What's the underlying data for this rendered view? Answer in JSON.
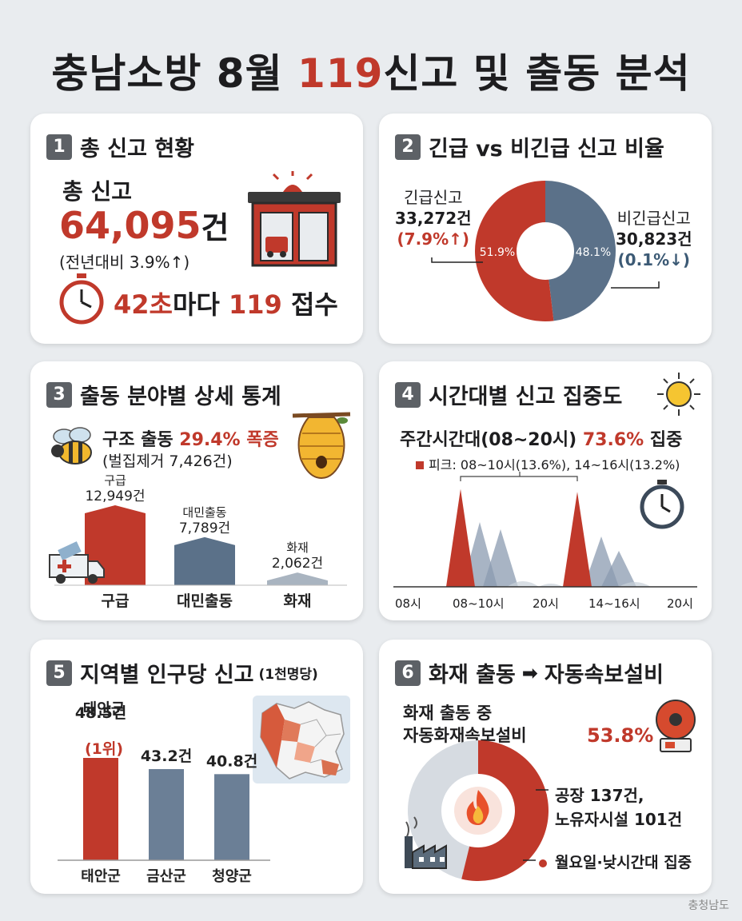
{
  "title": {
    "pre": "충남소방 8월 ",
    "red": "119",
    "post": "신고 및 출동 분석"
  },
  "colors": {
    "red": "#c0392b",
    "blue": "#5b7189",
    "gray": "#a9b4c0"
  },
  "s1": {
    "num": "1",
    "title": "총 신고 현황",
    "label": "총 신고",
    "total": "64,095",
    "unit": "건",
    "yoy": "(전년대비 3.9%↑)",
    "freq_sec": "42초",
    "freq_mid": "마다 ",
    "freq_num": "119",
    "freq_end": " 접수",
    "icons": [
      "fire-station-icon",
      "stopwatch-icon"
    ]
  },
  "s2": {
    "num": "2",
    "title": "긴급 vs 비긴급 신고 비율",
    "emergency": {
      "label": "긴급신고",
      "count": "33,272건",
      "change": "(7.9%↑)",
      "pct": "51.9%"
    },
    "nonemergency": {
      "label": "비긴급신고",
      "count": "30,823건",
      "change": "(0.1%↓)",
      "pct": "48.1%"
    }
  },
  "s3": {
    "num": "3",
    "title": "출동 분야별 상세 통계",
    "rescue_pre": "구조 출동 ",
    "rescue_red": "29.4% 폭증",
    "rescue_sub": "(벌집제거 7,426건)",
    "icons": [
      "bee-icon",
      "beehive-icon",
      "ambulance-icon"
    ]
  },
  "s4": {
    "num": "4",
    "title": "시간대별 신고 집중도",
    "daytime_pre": "주간시간대(08~20시) ",
    "daytime_red": "73.6%",
    "daytime_post": " 집중",
    "peak_note": "피크: 08~10시(13.6%), 14~16시(13.2%)",
    "axis": [
      "08시",
      "08~10시",
      "20시",
      "14~16시",
      "20시"
    ],
    "icons": [
      "sun-icon",
      "stopwatch-icon"
    ]
  },
  "s5": {
    "num": "5",
    "title": "지역별 인구당 신고",
    "title_note": "(1천명당)",
    "top_name": "태안군",
    "top_rank": "(1위)",
    "icons": [
      "map-icon"
    ]
  },
  "s6": {
    "num": "6",
    "title_pre": "화재 출동",
    "title_post": "자동속보설비",
    "desc1": "화재 출동 중",
    "desc2": "자동화재속보설비",
    "pct": "53.8%",
    "bullet1a": "공장 137건,",
    "bullet1b": "노유자시설 101건",
    "bullet2": "월요일·낮시간대 집중",
    "donut_share": 53.8,
    "icons": [
      "alarm-bell-icon",
      "fire-icon",
      "factory-icon"
    ]
  },
  "footer": "충청남도",
  "chart_data": [
    {
      "type": "pie",
      "title": "긴급 vs 비긴급 신고 비율",
      "categories": [
        "긴급신고",
        "비긴급신고"
      ],
      "values": [
        51.9,
        48.1
      ]
    },
    {
      "type": "bar",
      "title": "출동 분야별 상세 통계",
      "categories": [
        "구급",
        "대민출동",
        "화재"
      ],
      "values": [
        12949,
        7789,
        2062
      ],
      "value_labels": [
        "12,949건",
        "7,789건",
        "2,062건"
      ]
    },
    {
      "type": "area",
      "title": "시간대별 신고 집중도",
      "series": [
        {
          "values": [
            0,
            13.6,
            0,
            0,
            0,
            13.2,
            0,
            0
          ]
        },
        {
          "values": [
            0,
            0,
            9,
            8,
            0,
            0,
            7,
            5
          ]
        }
      ]
    },
    {
      "type": "bar",
      "title": "지역별 인구당 신고",
      "categories": [
        "태안군",
        "금산군",
        "청양군"
      ],
      "values": [
        48.5,
        43.2,
        40.8
      ],
      "value_labels": [
        "48.5건",
        "43.2건",
        "40.8건"
      ]
    }
  ]
}
